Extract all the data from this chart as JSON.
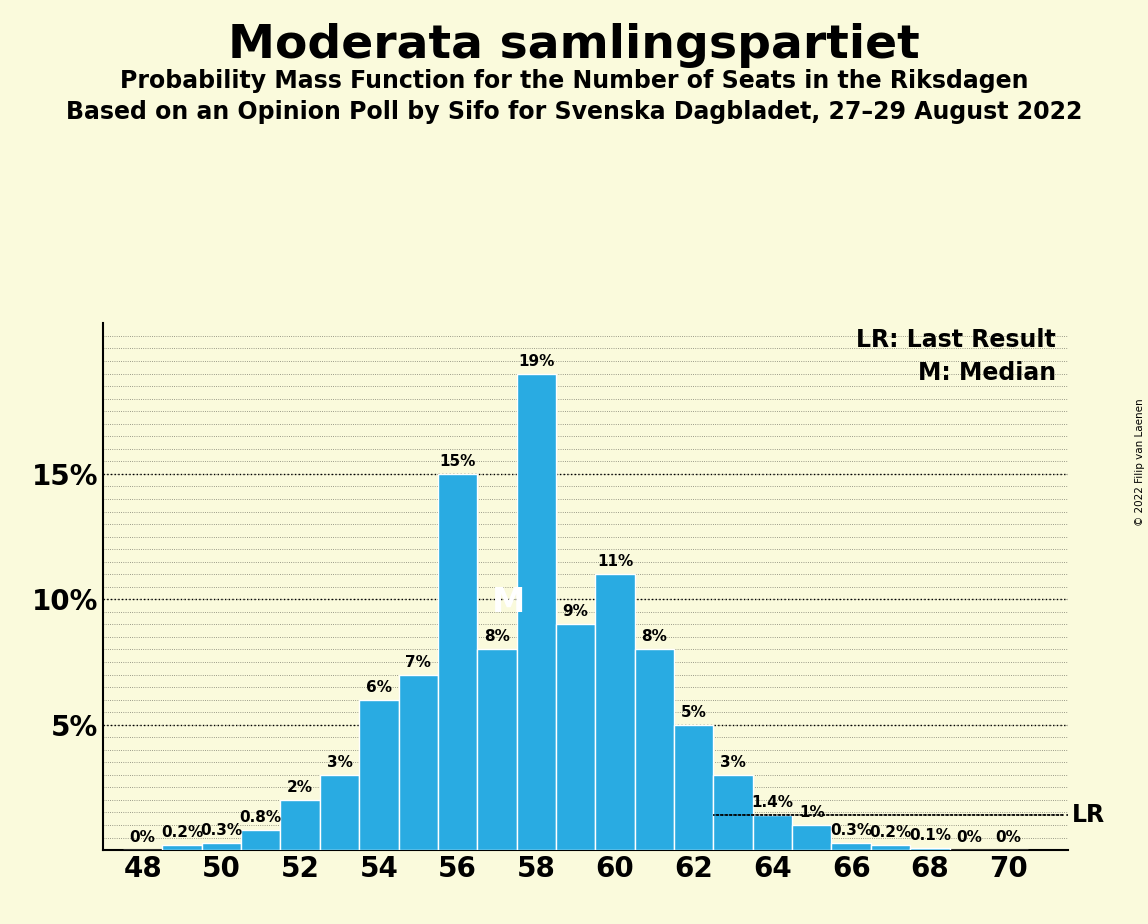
{
  "title": "Moderata samlingspartiet",
  "subtitle1": "Probability Mass Function for the Number of Seats in the Riksdagen",
  "subtitle2": "Based on an Opinion Poll by Sifo for Svenska Dagbladet, 27–29 August 2022",
  "copyright": "© 2022 Filip van Laenen",
  "seats": [
    48,
    49,
    50,
    51,
    52,
    53,
    54,
    55,
    56,
    57,
    58,
    59,
    60,
    61,
    62,
    63,
    64,
    65,
    66,
    67,
    68,
    69,
    70
  ],
  "probabilities": [
    0.0,
    0.2,
    0.3,
    0.8,
    2.0,
    3.0,
    6.0,
    7.0,
    15.0,
    8.0,
    19.0,
    9.0,
    11.0,
    8.0,
    5.0,
    3.0,
    1.4,
    1.0,
    0.3,
    0.2,
    0.1,
    0.0,
    0.0
  ],
  "bar_color": "#29ABE2",
  "background_color": "#FAFADC",
  "median_seat": 58,
  "lr_seat": 64,
  "lr_prob": 1.4,
  "lr_label": "LR",
  "median_label": "M",
  "ylim": [
    0,
    21
  ],
  "title_fontsize": 34,
  "subtitle_fontsize": 17,
  "axis_tick_fontsize": 20,
  "bar_label_fontsize": 11,
  "legend_fontsize": 17
}
